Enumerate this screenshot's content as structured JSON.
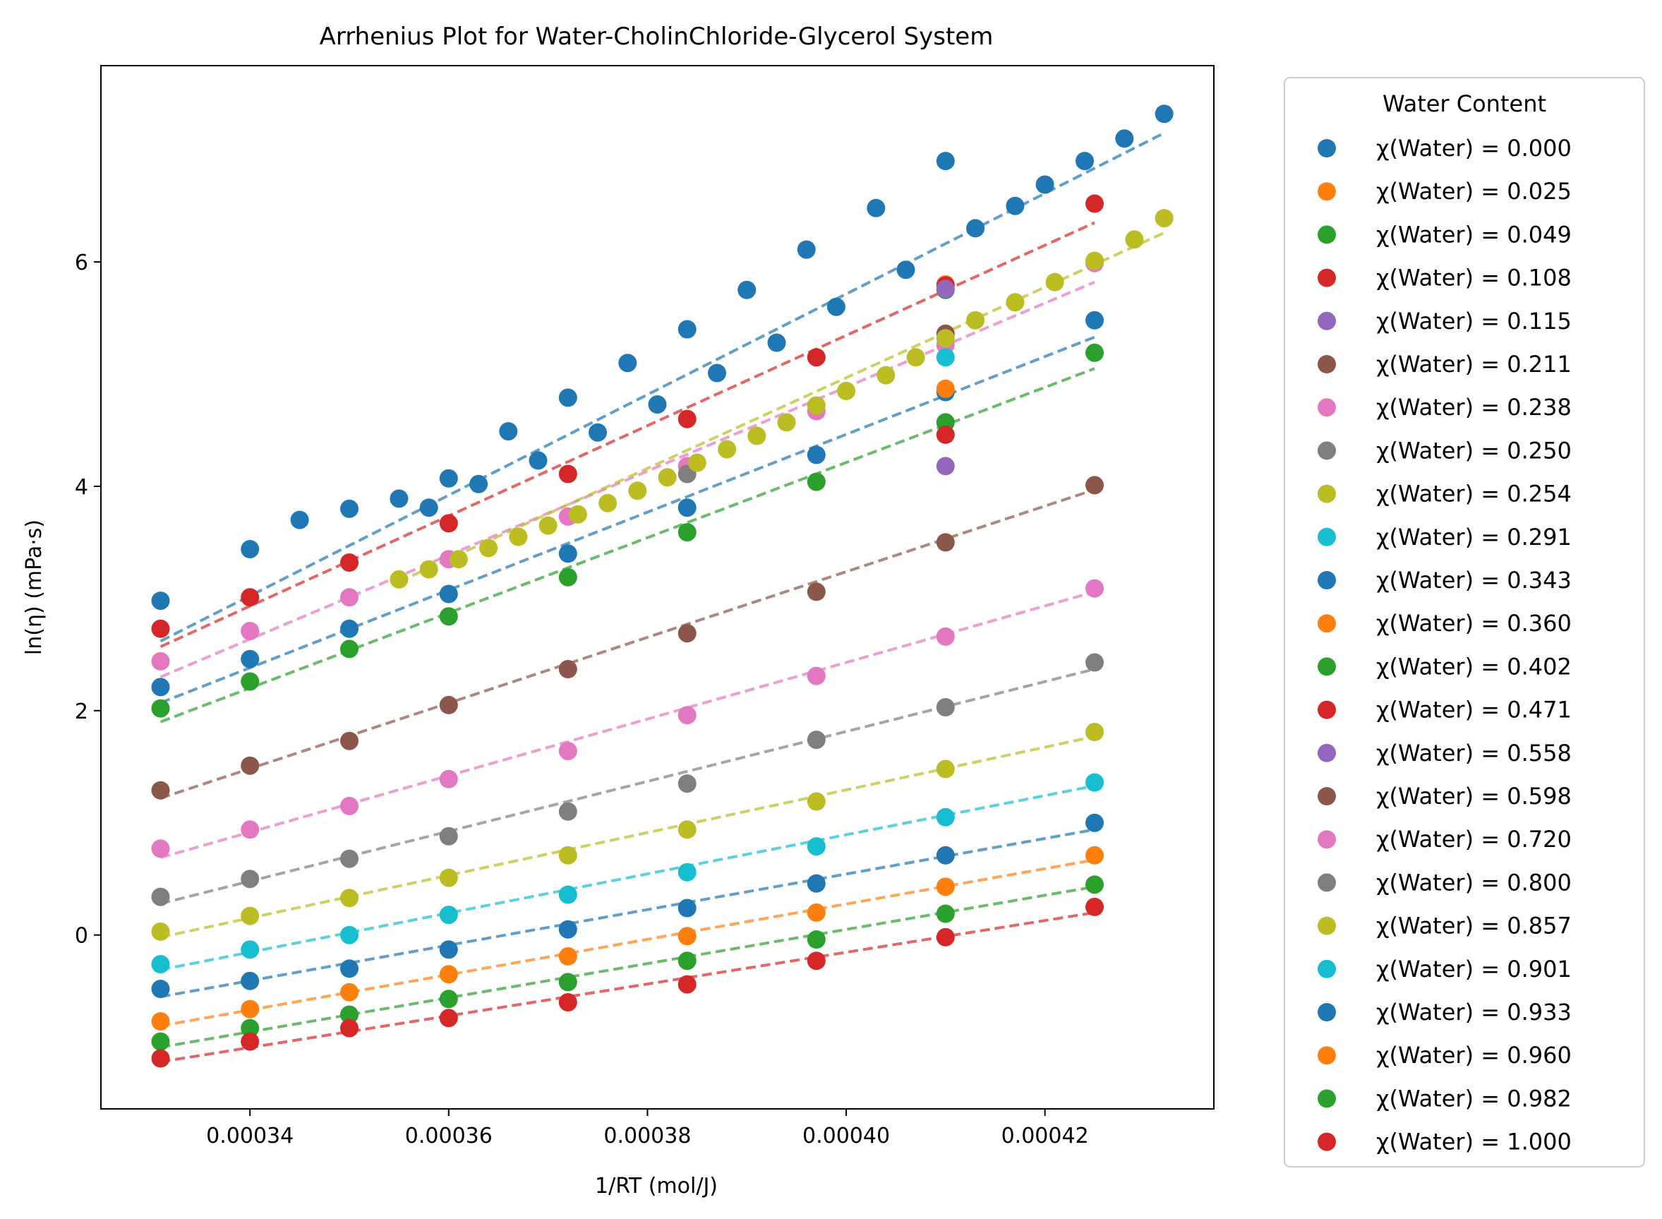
{
  "chart_data": {
    "type": "scatter",
    "title": "Arrhenius Plot for Water-CholinChloride-Glycerol System",
    "xlabel": "1/RT (mol/J)",
    "ylabel": "ln(η) (mPa·s)",
    "xlim": [
      0.000325,
      0.000437
    ],
    "ylim": [
      -1.55,
      7.75
    ],
    "xticks": [
      0.00034,
      0.00036,
      0.00038,
      0.0004,
      0.00042
    ],
    "xtick_labels": [
      "0.00034",
      "0.00036",
      "0.00038",
      "0.00040",
      "0.00042"
    ],
    "yticks": [
      0,
      2,
      4,
      6
    ],
    "ytick_labels": [
      "0",
      "2",
      "4",
      "6"
    ],
    "grid": false,
    "legend": {
      "title": "Water Content",
      "placement": "outside-right"
    },
    "series": [
      {
        "name": "χ(Water) = 0.000",
        "color": "#1f77b4",
        "x": [
          0.000331,
          0.00034,
          0.000345,
          0.00035,
          0.000355,
          0.000358,
          0.00036,
          0.000363,
          0.000366,
          0.000369,
          0.000372,
          0.000375,
          0.000378,
          0.000381,
          0.000384,
          0.000387,
          0.00039,
          0.000393,
          0.000396,
          0.000399,
          0.000403,
          0.000406,
          0.00041,
          0.000413,
          0.000417,
          0.00042,
          0.000424,
          0.000428,
          0.000432
        ],
        "y": [
          2.98,
          3.44,
          3.7,
          3.8,
          3.89,
          3.81,
          4.07,
          4.02,
          4.49,
          4.23,
          4.79,
          4.48,
          5.1,
          4.73,
          5.4,
          5.01,
          5.75,
          5.28,
          6.11,
          5.6,
          6.48,
          5.93,
          6.9,
          6.3,
          6.5,
          6.69,
          6.9,
          7.1,
          7.32
        ],
        "fit": [
          [
            0.000331,
            2.62
          ],
          [
            0.000432,
            7.15
          ]
        ]
      },
      {
        "name": "χ(Water) = 0.025",
        "color": "#ff7f0e",
        "x": [
          0.00041
        ],
        "y": [
          5.8
        ],
        "fit": null
      },
      {
        "name": "χ(Water) = 0.049",
        "color": "#2ca02c",
        "x": [
          0.00041
        ],
        "y": [
          5.75
        ],
        "fit": null
      },
      {
        "name": "χ(Water) = 0.108",
        "color": "#d62728",
        "x": [
          0.000331,
          0.00034,
          0.00035,
          0.00036,
          0.000372,
          0.000384,
          0.000397,
          0.00041,
          0.000425
        ],
        "y": [
          2.73,
          3.01,
          3.32,
          3.67,
          4.11,
          4.6,
          5.15,
          5.79,
          6.52
        ],
        "fit": [
          [
            0.000331,
            2.57
          ],
          [
            0.000425,
            6.35
          ]
        ]
      },
      {
        "name": "χ(Water) = 0.115",
        "color": "#9467bd",
        "x": [
          0.00041,
          0.00041
        ],
        "y": [
          5.76,
          4.18
        ],
        "fit": null
      },
      {
        "name": "χ(Water) = 0.211",
        "color": "#8c564b",
        "x": [
          0.00041
        ],
        "y": [
          5.36
        ],
        "fit": null
      },
      {
        "name": "χ(Water) = 0.238",
        "color": "#e377c2",
        "x": [
          0.000331,
          0.00034,
          0.00035,
          0.00036,
          0.000372,
          0.000384,
          0.000397,
          0.00041,
          0.000425
        ],
        "y": [
          2.44,
          2.71,
          3.01,
          3.35,
          3.73,
          4.18,
          4.67,
          5.26,
          5.99
        ],
        "fit": [
          [
            0.000331,
            2.3
          ],
          [
            0.000425,
            5.82
          ]
        ]
      },
      {
        "name": "χ(Water) = 0.250",
        "color": "#7f7f7f",
        "x": [
          0.000384,
          0.00041
        ],
        "y": [
          4.11,
          4.85
        ],
        "fit": null
      },
      {
        "name": "χ(Water) = 0.254",
        "color": "#bcbd22",
        "x": [
          0.000355,
          0.000358,
          0.000361,
          0.000364,
          0.000367,
          0.00037,
          0.000373,
          0.000376,
          0.000379,
          0.000382,
          0.000385,
          0.000388,
          0.000391,
          0.000394,
          0.000397,
          0.0004,
          0.000404,
          0.000407,
          0.00041,
          0.000413,
          0.000417,
          0.000421,
          0.000425,
          0.000429,
          0.000432
        ],
        "y": [
          3.17,
          3.26,
          3.35,
          3.45,
          3.55,
          3.65,
          3.75,
          3.85,
          3.96,
          4.08,
          4.21,
          4.33,
          4.45,
          4.57,
          4.72,
          4.85,
          4.99,
          5.15,
          5.32,
          5.48,
          5.64,
          5.82,
          6.01,
          6.2,
          6.39
        ],
        "fit": [
          [
            0.000355,
            3.15
          ],
          [
            0.000432,
            6.26
          ]
        ]
      },
      {
        "name": "χ(Water) = 0.291",
        "color": "#17becf",
        "x": [
          0.00041
        ],
        "y": [
          5.15
        ],
        "fit": null
      },
      {
        "name": "χ(Water) = 0.343",
        "color": "#1f77b4",
        "x": [
          0.000331,
          0.00034,
          0.00035,
          0.00036,
          0.000372,
          0.000384,
          0.000397,
          0.00041,
          0.000425
        ],
        "y": [
          2.21,
          2.46,
          2.73,
          3.04,
          3.4,
          3.81,
          4.28,
          4.84,
          5.48
        ],
        "fit": [
          [
            0.000331,
            2.07
          ],
          [
            0.000425,
            5.33
          ]
        ]
      },
      {
        "name": "χ(Water) = 0.360",
        "color": "#ff7f0e",
        "x": [
          0.00041
        ],
        "y": [
          4.87
        ],
        "fit": null
      },
      {
        "name": "χ(Water) = 0.402",
        "color": "#2ca02c",
        "x": [
          0.000331,
          0.00034,
          0.00035,
          0.00036,
          0.000372,
          0.000384,
          0.000397,
          0.00041,
          0.000425
        ],
        "y": [
          2.02,
          2.26,
          2.55,
          2.84,
          3.19,
          3.59,
          4.04,
          4.57,
          5.19
        ],
        "fit": [
          [
            0.000331,
            1.9
          ],
          [
            0.000425,
            5.05
          ]
        ]
      },
      {
        "name": "χ(Water) = 0.471",
        "color": "#d62728",
        "x": [
          0.00041
        ],
        "y": [
          4.46
        ],
        "fit": null
      },
      {
        "name": "χ(Water) = 0.558",
        "color": "#9467bd",
        "x": [],
        "y": [],
        "fit": null
      },
      {
        "name": "χ(Water) = 0.598",
        "color": "#8c564b",
        "x": [
          0.000331,
          0.00034,
          0.00035,
          0.00036,
          0.000372,
          0.000384,
          0.000397,
          0.00041,
          0.000425
        ],
        "y": [
          1.29,
          1.51,
          1.73,
          2.05,
          2.37,
          2.69,
          3.06,
          3.5,
          4.01
        ],
        "fit": [
          [
            0.000331,
            1.22
          ],
          [
            0.000425,
            3.97
          ]
        ]
      },
      {
        "name": "χ(Water) = 0.720",
        "color": "#e377c2",
        "x": [
          0.000331,
          0.00034,
          0.00035,
          0.00036,
          0.000372,
          0.000384,
          0.000397,
          0.00041,
          0.000425
        ],
        "y": [
          0.77,
          0.94,
          1.15,
          1.39,
          1.64,
          1.96,
          2.31,
          2.66,
          3.09
        ],
        "fit": [
          [
            0.000331,
            0.69
          ],
          [
            0.000425,
            3.06
          ]
        ]
      },
      {
        "name": "χ(Water) = 0.800",
        "color": "#7f7f7f",
        "x": [
          0.000331,
          0.00034,
          0.00035,
          0.00036,
          0.000372,
          0.000384,
          0.000397,
          0.00041,
          0.000425
        ],
        "y": [
          0.34,
          0.5,
          0.68,
          0.88,
          1.1,
          1.35,
          1.74,
          2.03,
          2.43
        ],
        "fit": [
          [
            0.000331,
            0.28
          ],
          [
            0.000425,
            2.37
          ]
        ]
      },
      {
        "name": "χ(Water) = 0.857",
        "color": "#bcbd22",
        "x": [
          0.000331,
          0.00034,
          0.00035,
          0.00036,
          0.000372,
          0.000384,
          0.000397,
          0.00041,
          0.000425
        ],
        "y": [
          0.03,
          0.17,
          0.33,
          0.51,
          0.71,
          0.94,
          1.19,
          1.48,
          1.81
        ],
        "fit": [
          [
            0.000331,
            -0.02
          ],
          [
            0.000425,
            1.77
          ]
        ]
      },
      {
        "name": "χ(Water) = 0.901",
        "color": "#17becf",
        "x": [
          0.000331,
          0.00034,
          0.00035,
          0.00036,
          0.000372,
          0.000384,
          0.000397,
          0.00041,
          0.000425
        ],
        "y": [
          -0.26,
          -0.13,
          0.0,
          0.18,
          0.36,
          0.56,
          0.79,
          1.05,
          1.36
        ],
        "fit": [
          [
            0.000331,
            -0.31
          ],
          [
            0.000425,
            1.33
          ]
        ]
      },
      {
        "name": "χ(Water) = 0.933",
        "color": "#1f77b4",
        "x": [
          0.000331,
          0.00034,
          0.00035,
          0.00036,
          0.000372,
          0.000384,
          0.000397,
          0.00041,
          0.000425
        ],
        "y": [
          -0.48,
          -0.41,
          -0.3,
          -0.13,
          0.05,
          0.24,
          0.46,
          0.71,
          1.0
        ],
        "fit": [
          [
            0.000331,
            -0.55
          ],
          [
            0.000425,
            0.94
          ]
        ]
      },
      {
        "name": "χ(Water) = 0.960",
        "color": "#ff7f0e",
        "x": [
          0.000331,
          0.00034,
          0.00035,
          0.00036,
          0.000372,
          0.000384,
          0.000397,
          0.00041,
          0.000425
        ],
        "y": [
          -0.77,
          -0.66,
          -0.51,
          -0.35,
          -0.19,
          -0.01,
          0.2,
          0.43,
          0.71
        ],
        "fit": [
          [
            0.000331,
            -0.81
          ],
          [
            0.000425,
            0.67
          ]
        ]
      },
      {
        "name": "χ(Water) = 0.982",
        "color": "#2ca02c",
        "x": [
          0.000331,
          0.00034,
          0.00035,
          0.00036,
          0.000372,
          0.000384,
          0.000397,
          0.00041,
          0.000425
        ],
        "y": [
          -0.95,
          -0.83,
          -0.71,
          -0.57,
          -0.42,
          -0.23,
          -0.04,
          0.19,
          0.45
        ],
        "fit": [
          [
            0.000331,
            -1.0
          ],
          [
            0.000425,
            0.43
          ]
        ]
      },
      {
        "name": "χ(Water) = 1.000",
        "color": "#d62728",
        "x": [
          0.000331,
          0.00034,
          0.00035,
          0.00036,
          0.000372,
          0.000384,
          0.000397,
          0.00041,
          0.000425
        ],
        "y": [
          -1.1,
          -0.95,
          -0.83,
          -0.74,
          -0.6,
          -0.44,
          -0.23,
          -0.02,
          0.25
        ],
        "fit": [
          [
            0.000331,
            -1.13
          ],
          [
            0.000425,
            0.2
          ]
        ]
      }
    ]
  }
}
